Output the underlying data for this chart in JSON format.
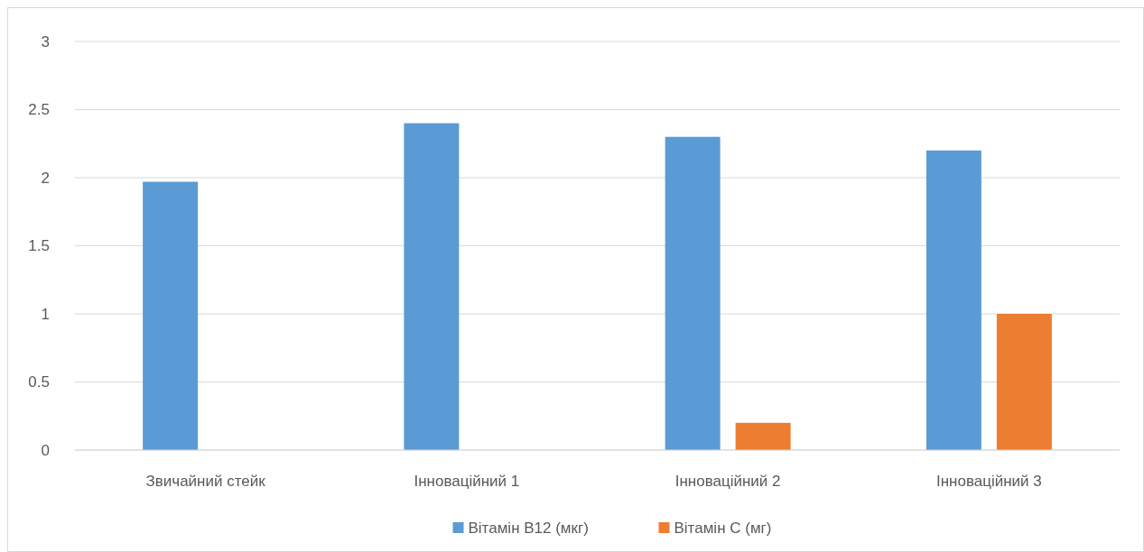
{
  "chart_data": {
    "type": "bar",
    "categories": [
      "Звичайний стейк",
      "Інноваційний 1",
      "Інноваційний 2",
      "Інноваційний 3"
    ],
    "series": [
      {
        "name": "Вітамін В12 (мкг)",
        "color": "#5b9bd5",
        "values": [
          1.97,
          2.4,
          2.3,
          2.2
        ]
      },
      {
        "name": "Вітамін С (мг)",
        "color": "#ed7d31",
        "values": [
          0,
          0,
          0.2,
          1
        ]
      }
    ],
    "ylim": [
      0,
      3
    ],
    "yticks": [
      0,
      0.5,
      1,
      1.5,
      2,
      2.5,
      3
    ],
    "grid": "y",
    "legend": "bottom"
  }
}
